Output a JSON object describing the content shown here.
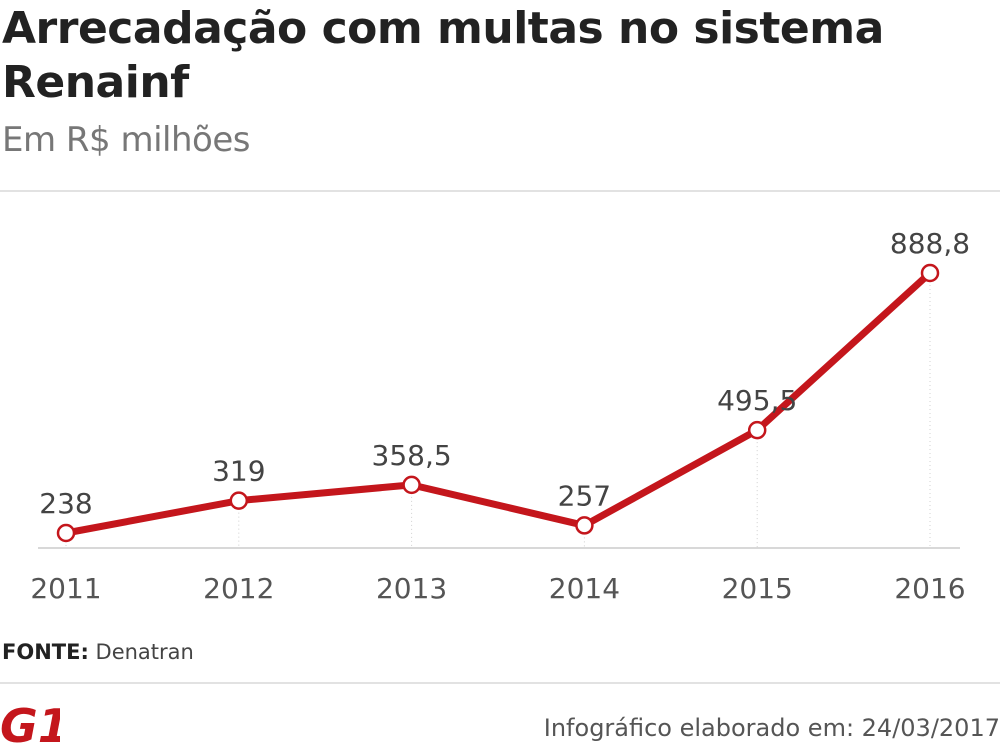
{
  "header": {
    "title": "Arrecadação com multas no sistema Renainf",
    "subtitle": "Em R$ milhões"
  },
  "chart_data": {
    "type": "line",
    "title": "Arrecadação com multas no sistema Renainf",
    "ylabel": "Em R$ milhões",
    "xlabel": "",
    "categories": [
      "2011",
      "2012",
      "2013",
      "2014",
      "2015",
      "2016"
    ],
    "series": [
      {
        "name": "Arrecadação",
        "values": [
          238,
          319,
          358.5,
          257,
          495.5,
          888.8
        ],
        "labels": [
          "238",
          "319",
          "358,5",
          "257",
          "495,5",
          "888,8"
        ]
      }
    ],
    "ylim": [
      210,
      960
    ],
    "grid": false,
    "legend": "none"
  },
  "footer": {
    "source_label": "FONTE:",
    "source_value": "Denatran",
    "logo_text": "G1",
    "credit": "Infográfico elaborado em: 24/03/2017"
  },
  "colors": {
    "line": "#c4161c",
    "marker_fill": "#ffffff",
    "text": "#222222",
    "axis_text": "#555555",
    "subtitle": "#777777",
    "logo": "#c4161c"
  }
}
